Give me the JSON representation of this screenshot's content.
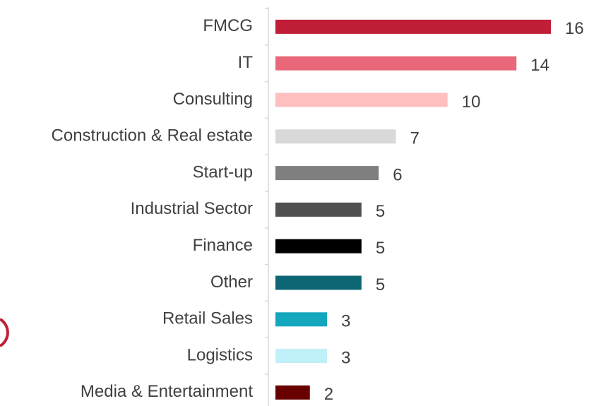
{
  "chart_data": {
    "type": "bar",
    "orientation": "horizontal",
    "categories": [
      "FMCG",
      "IT",
      "Consulting",
      "Construction & Real estate",
      "Start-up",
      "Industrial Sector",
      "Finance",
      "Other",
      "Retail Sales",
      "Logistics",
      "Media & Entertainment"
    ],
    "values": [
      16,
      14,
      10,
      7,
      6,
      5,
      5,
      5,
      3,
      3,
      2
    ],
    "colors": [
      "#c01e36",
      "#e8687a",
      "#ffbfbf",
      "#d9d9d9",
      "#7f7f7f",
      "#505050",
      "#000000",
      "#0d6674",
      "#13a6bc",
      "#c0f0f8",
      "#680000"
    ]
  }
}
